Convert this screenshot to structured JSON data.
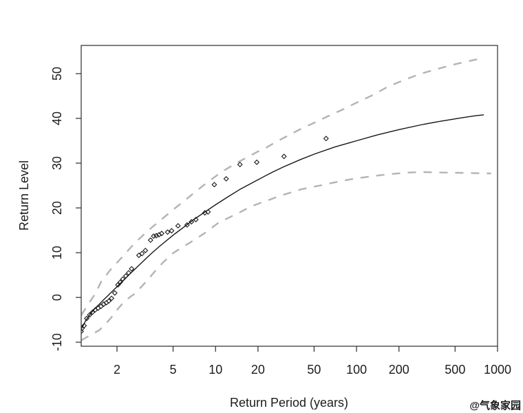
{
  "figure": {
    "background": "#ffffff",
    "watermark": "@气象家园",
    "watermark_color": "#f6f6bd",
    "box_color": "#3a3a3a",
    "text_color": "#1c1c1c"
  },
  "chart_data": {
    "type": "line",
    "title": "",
    "xlabel": "Return Period (years)",
    "ylabel": "Return Level",
    "x_scale": "log10",
    "grid": false,
    "legend": "none",
    "x_ticks": [
      2,
      5,
      10,
      20,
      50,
      100,
      200,
      500,
      1000
    ],
    "y_ticks": [
      -10,
      0,
      10,
      20,
      30,
      40,
      50
    ],
    "xlim": [
      1.115,
      1000
    ],
    "ylim": [
      -10.9,
      56.3
    ],
    "series": [
      {
        "name": "fitted-return-level",
        "style": "solid",
        "color": "#161616",
        "width": 1.4,
        "points": [
          [
            1.115,
            -7.1
          ],
          [
            1.2,
            -5.2
          ],
          [
            1.3,
            -3.6
          ],
          [
            1.4,
            -2.4
          ],
          [
            1.5,
            -1.5
          ],
          [
            1.6,
            -0.6
          ],
          [
            1.75,
            0.6
          ],
          [
            2,
            2.4
          ],
          [
            2.25,
            4.0
          ],
          [
            2.5,
            5.4
          ],
          [
            3,
            7.8
          ],
          [
            3.5,
            9.8
          ],
          [
            4,
            11.4
          ],
          [
            5,
            13.9
          ],
          [
            6,
            15.8
          ],
          [
            7,
            17.4
          ],
          [
            8.5,
            19.2
          ],
          [
            10,
            20.7
          ],
          [
            12,
            22.3
          ],
          [
            15,
            24.2
          ],
          [
            20,
            26.3
          ],
          [
            25,
            27.9
          ],
          [
            30,
            29.1
          ],
          [
            40,
            30.8
          ],
          [
            50,
            32.0
          ],
          [
            70,
            33.6
          ],
          [
            100,
            35.0
          ],
          [
            140,
            36.3
          ],
          [
            200,
            37.5
          ],
          [
            300,
            38.7
          ],
          [
            400,
            39.4
          ],
          [
            550,
            40.1
          ],
          [
            700,
            40.6
          ],
          [
            800,
            40.8
          ]
        ]
      },
      {
        "name": "upper-confidence-bound",
        "style": "dashed",
        "color": "#b3b3b3",
        "width": 2.4,
        "points": [
          [
            1.115,
            -4.0
          ],
          [
            1.25,
            -1.5
          ],
          [
            1.4,
            0.8
          ],
          [
            1.55,
            3.6
          ],
          [
            1.8,
            6.2
          ],
          [
            2.2,
            9.2
          ],
          [
            2.7,
            12.3
          ],
          [
            3.4,
            15.2
          ],
          [
            4.2,
            17.6
          ],
          [
            5,
            19.6
          ],
          [
            6,
            21.6
          ],
          [
            7,
            23.3
          ],
          [
            8.5,
            25.4
          ],
          [
            11,
            28.0
          ],
          [
            14,
            30.0
          ],
          [
            17,
            31.4
          ],
          [
            20,
            32.6
          ],
          [
            23,
            33.5
          ],
          [
            27,
            34.8
          ],
          [
            32,
            36.0
          ],
          [
            40,
            37.6
          ],
          [
            50,
            39.0
          ],
          [
            61,
            40.3
          ],
          [
            80,
            42.0
          ],
          [
            100,
            43.5
          ],
          [
            130,
            45.2
          ],
          [
            165,
            47.0
          ],
          [
            210,
            48.4
          ],
          [
            280,
            49.9
          ],
          [
            380,
            51.1
          ],
          [
            500,
            52.1
          ],
          [
            650,
            52.9
          ],
          [
            760,
            53.4
          ]
        ]
      },
      {
        "name": "lower-confidence-bound",
        "style": "dashed",
        "color": "#b3b3b3",
        "width": 2.4,
        "points": [
          [
            1.115,
            -9.6
          ],
          [
            1.3,
            -8.4
          ],
          [
            1.5,
            -7.3
          ],
          [
            1.65,
            -6.0
          ],
          [
            1.8,
            -4.7
          ],
          [
            2.0,
            -2.8
          ],
          [
            2.24,
            -1.0
          ],
          [
            2.5,
            0.2
          ],
          [
            2.7,
            0.9
          ],
          [
            3.0,
            2.5
          ],
          [
            3.4,
            4.4
          ],
          [
            3.8,
            6.2
          ],
          [
            4.3,
            8.0
          ],
          [
            5,
            9.9
          ],
          [
            5.8,
            11.2
          ],
          [
            6.7,
            12.4
          ],
          [
            8.4,
            14.4
          ],
          [
            10.6,
            16.8
          ],
          [
            12,
            17.6
          ],
          [
            14,
            18.6
          ],
          [
            18,
            20.4
          ],
          [
            23,
            21.6
          ],
          [
            30,
            22.9
          ],
          [
            41,
            24.2
          ],
          [
            55,
            25.0
          ],
          [
            75,
            25.9
          ],
          [
            95,
            26.5
          ],
          [
            130,
            27.1
          ],
          [
            165,
            27.5
          ],
          [
            230,
            27.9
          ],
          [
            300,
            28.0
          ],
          [
            420,
            27.9
          ],
          [
            600,
            27.8
          ],
          [
            900,
            27.7
          ]
        ]
      }
    ],
    "scatter": {
      "name": "empirical-return-levels",
      "marker": "open-diamond",
      "color": "#161616",
      "points": [
        [
          1.115,
          -7.6
        ],
        [
          1.13,
          -6.9
        ],
        [
          1.17,
          -6.3
        ],
        [
          1.22,
          -4.7
        ],
        [
          1.28,
          -3.9
        ],
        [
          1.34,
          -3.3
        ],
        [
          1.4,
          -2.8
        ],
        [
          1.47,
          -2.4
        ],
        [
          1.54,
          -2.0
        ],
        [
          1.61,
          -1.5
        ],
        [
          1.68,
          -1.2
        ],
        [
          1.75,
          -0.8
        ],
        [
          1.83,
          -0.2
        ],
        [
          1.93,
          1.0
        ],
        [
          2.03,
          2.8
        ],
        [
          2.11,
          3.4
        ],
        [
          2.2,
          4.1
        ],
        [
          2.31,
          4.8
        ],
        [
          2.42,
          5.5
        ],
        [
          2.54,
          6.4
        ],
        [
          2.86,
          9.4
        ],
        [
          3.01,
          9.8
        ],
        [
          3.18,
          10.5
        ],
        [
          3.46,
          12.8
        ],
        [
          3.64,
          13.7
        ],
        [
          3.8,
          13.8
        ],
        [
          3.97,
          14.0
        ],
        [
          4.15,
          14.3
        ],
        [
          4.57,
          14.6
        ],
        [
          4.88,
          14.9
        ],
        [
          5.42,
          16.0
        ],
        [
          6.28,
          16.2
        ],
        [
          6.75,
          16.9
        ],
        [
          7.25,
          17.4
        ],
        [
          8.4,
          18.9
        ],
        [
          8.85,
          19.1
        ],
        [
          9.8,
          25.2
        ],
        [
          11.9,
          26.5
        ],
        [
          14.9,
          29.7
        ],
        [
          19.6,
          30.2
        ],
        [
          30.6,
          31.5
        ],
        [
          60.8,
          35.5
        ]
      ]
    }
  }
}
